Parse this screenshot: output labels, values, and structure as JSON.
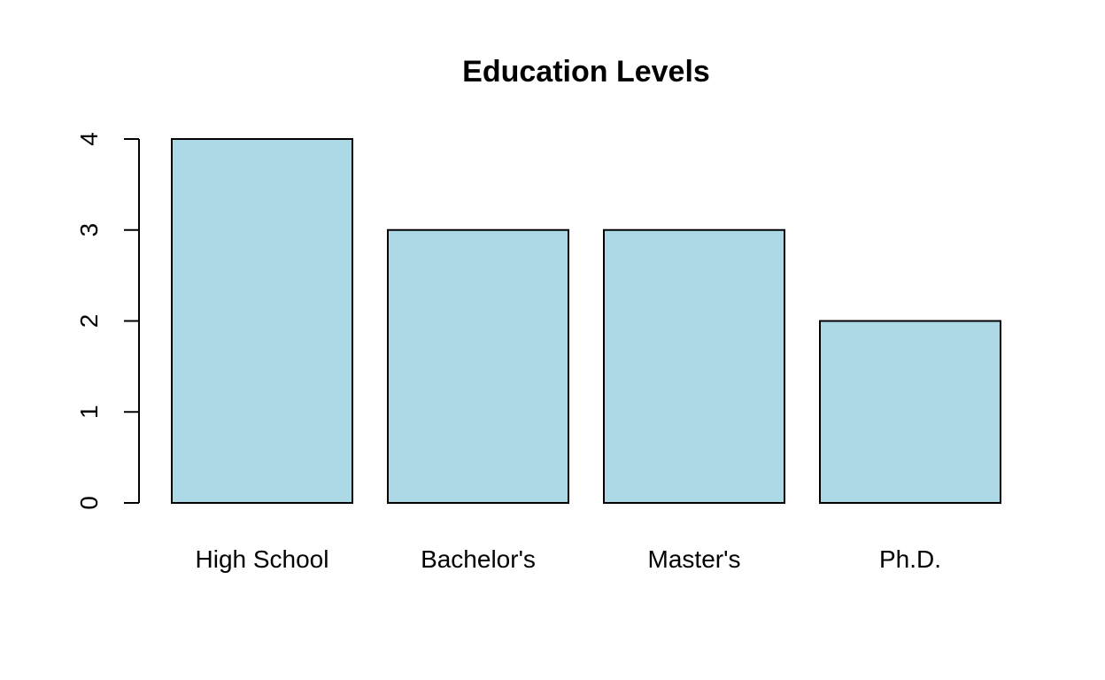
{
  "chart_data": {
    "type": "bar",
    "title": "Education Levels",
    "xlabel": "",
    "ylabel": "",
    "categories": [
      "High School",
      "Bachelor's",
      "Master's",
      "Ph.D."
    ],
    "values": [
      4,
      3,
      3,
      2
    ],
    "ylim": [
      0,
      4
    ],
    "yticks": [
      0,
      1,
      2,
      3,
      4
    ],
    "bar_color": "#add8e6",
    "border_color": "#000000",
    "grid": false,
    "legend": "none"
  }
}
